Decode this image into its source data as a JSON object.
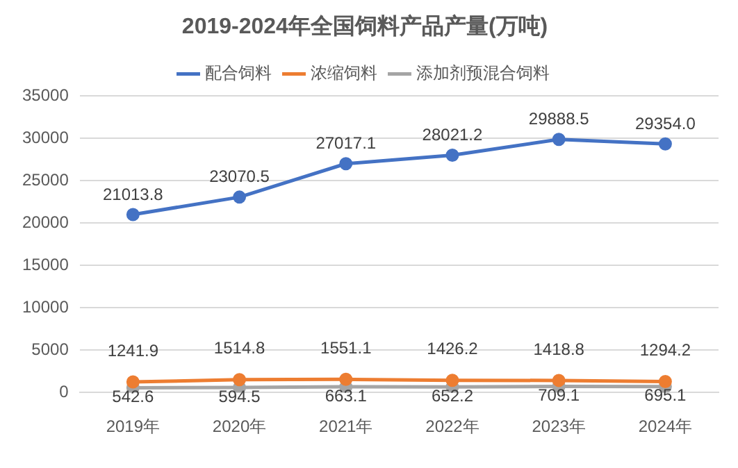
{
  "chart_data": {
    "type": "line",
    "title": "2019-2024年全国饲料产品产量(万吨)",
    "categories": [
      "2019年",
      "2020年",
      "2021年",
      "2022年",
      "2023年",
      "2024年"
    ],
    "series": [
      {
        "name": "配合饲料",
        "color": "#4472c4",
        "values": [
          21013.8,
          23070.5,
          27017.1,
          28021.2,
          29888.5,
          29354.0
        ],
        "value_labels": [
          "21013.8",
          "23070.5",
          "27017.1",
          "28021.2",
          "29888.5",
          "29354.0"
        ]
      },
      {
        "name": "浓缩饲料",
        "color": "#ed7d31",
        "values": [
          1241.9,
          1514.8,
          1551.1,
          1426.2,
          1418.8,
          1294.2
        ],
        "value_labels": [
          "1241.9",
          "1514.8",
          "1551.1",
          "1426.2",
          "1418.8",
          "1294.2"
        ]
      },
      {
        "name": "添加剂预混合饲料",
        "color": "#a5a5a5",
        "values": [
          542.6,
          594.5,
          663.1,
          652.2,
          709.1,
          695.1
        ],
        "value_labels": [
          "542.6",
          "594.5",
          "663.1",
          "652.2",
          "709.1",
          "695.1"
        ]
      }
    ],
    "ylim": [
      0,
      35000
    ],
    "yticks": [
      0,
      5000,
      10000,
      15000,
      20000,
      25000,
      30000,
      35000
    ],
    "grid": "y",
    "legend": "top",
    "marker": "circle",
    "line_style": "solid"
  }
}
